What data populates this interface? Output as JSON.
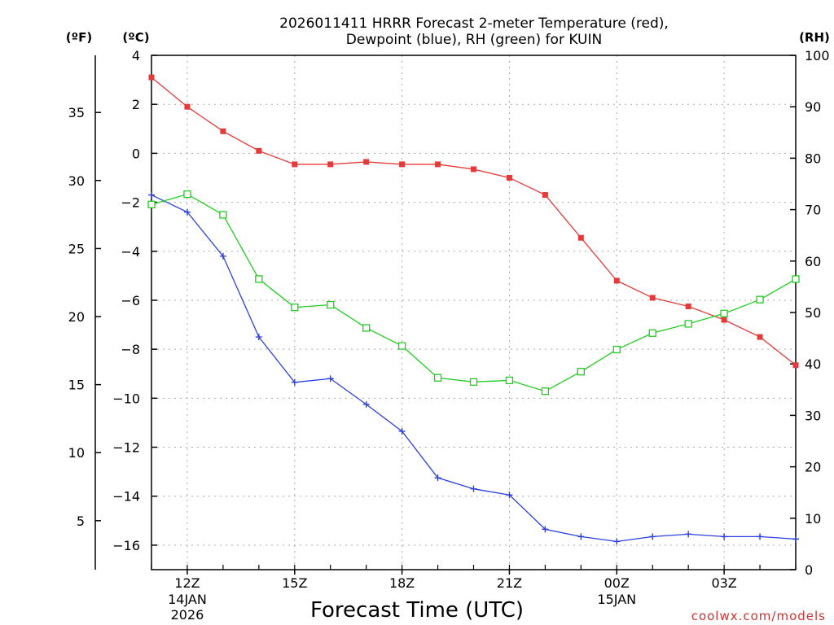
{
  "colors": {
    "temperature": "#e33b3b",
    "dewpoint": "#2a3fe0",
    "rh": "#22cc22",
    "credit": "#cc3333"
  },
  "chart_data": {
    "type": "line",
    "title": [
      "2026011411 HRRR Forecast 2-meter Temperature (red),",
      "Dewpoint (blue), RH (green) for KUIN"
    ],
    "xlabel": "Forecast Time (UTC)",
    "credit": "coolwx.com/models",
    "unit_labels": {
      "fahrenheit": "(ºF)",
      "celsius": "(ºC)",
      "rh": "(RH)"
    },
    "x_hours": [
      11,
      12,
      13,
      14,
      15,
      16,
      17,
      18,
      19,
      20,
      21,
      22,
      23,
      24,
      25,
      26,
      27,
      28,
      29
    ],
    "x_range": [
      11,
      29
    ],
    "x_ticks": [
      {
        "hour": 12,
        "label": "12Z",
        "sub": [
          "14JAN",
          "2026"
        ]
      },
      {
        "hour": 15,
        "label": "15Z",
        "sub": []
      },
      {
        "hour": 18,
        "label": "18Z",
        "sub": []
      },
      {
        "hour": 21,
        "label": "21Z",
        "sub": []
      },
      {
        "hour": 24,
        "label": "00Z",
        "sub": [
          "15JAN"
        ]
      },
      {
        "hour": 27,
        "label": "03Z",
        "sub": []
      }
    ],
    "celsius_axis": {
      "range": [
        -17,
        4
      ],
      "ticks": [
        4,
        2,
        0,
        -2,
        -4,
        -6,
        -8,
        -10,
        -12,
        -14,
        -16
      ]
    },
    "fahrenheit_axis": {
      "ticks": [
        35,
        30,
        25,
        20,
        15,
        10,
        5
      ]
    },
    "rh_axis": {
      "range": [
        0,
        100
      ],
      "ticks": [
        100,
        90,
        80,
        70,
        60,
        50,
        40,
        30,
        20,
        10,
        0
      ]
    },
    "series": [
      {
        "name": "Temperature",
        "unit": "C",
        "marker": "square-filled",
        "color": "#e33b3b",
        "values": [
          3.1,
          1.9,
          0.9,
          0.1,
          -0.45,
          -0.45,
          -0.35,
          -0.45,
          -0.45,
          -0.65,
          -1.0,
          -1.7,
          -3.45,
          -5.2,
          -5.9,
          -6.25,
          -6.8,
          -7.5,
          -8.65
        ]
      },
      {
        "name": "Dewpoint",
        "unit": "C",
        "marker": "plus",
        "color": "#2a3fe0",
        "values": [
          -1.7,
          -2.4,
          -4.2,
          -7.5,
          -9.35,
          -9.2,
          -10.25,
          -11.35,
          -13.25,
          -13.7,
          -13.95,
          -15.35,
          -15.65,
          -15.85,
          -15.65,
          -15.55,
          -15.65,
          -15.65,
          -15.75
        ]
      },
      {
        "name": "RH",
        "unit": "%",
        "marker": "square-open",
        "color": "#22cc22",
        "values": [
          71,
          73,
          69,
          56.5,
          51,
          51.5,
          47,
          43.5,
          37.3,
          36.5,
          36.8,
          34.7,
          38.5,
          42.8,
          46,
          47.8,
          49.8,
          52.5,
          56.5
        ]
      }
    ]
  }
}
